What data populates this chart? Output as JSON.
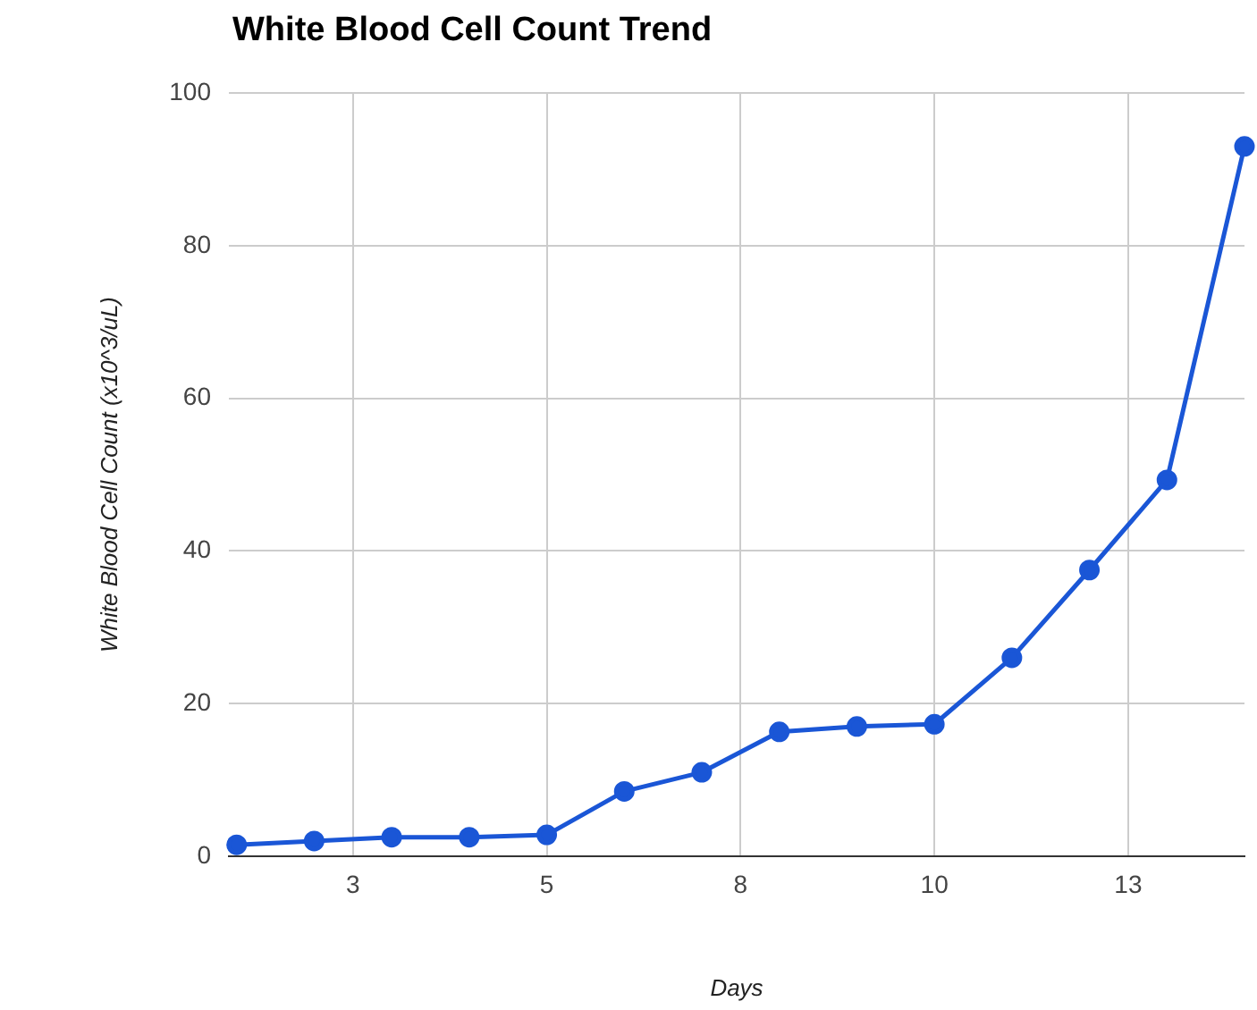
{
  "chart_data": {
    "type": "line",
    "title": "White Blood Cell Count Trend",
    "xlabel": "Days",
    "ylabel": "White Blood Cell Count (x10^3/uL)",
    "x": [
      1,
      2,
      3,
      4,
      5,
      6,
      7,
      8,
      9,
      10,
      11,
      12,
      13,
      14
    ],
    "series": [
      {
        "color": "#1a56d6",
        "values": [
          1.5,
          2,
          2.5,
          2.5,
          2.8,
          8.5,
          11,
          16.3,
          17,
          17.3,
          26,
          37.5,
          49.3,
          93
        ]
      }
    ],
    "xlim": [
      0.9,
      14
    ],
    "xticks": [
      {
        "value": 2.5,
        "label": "3"
      },
      5,
      {
        "value": 7.5,
        "label": "8"
      },
      10,
      {
        "value": 12.5,
        "label": "13"
      }
    ],
    "ylim": [
      0,
      100
    ],
    "yticks": [
      0,
      20,
      40,
      60,
      80,
      100
    ],
    "grid": true,
    "legend": false,
    "marker": "circle",
    "line_style": "solid"
  }
}
